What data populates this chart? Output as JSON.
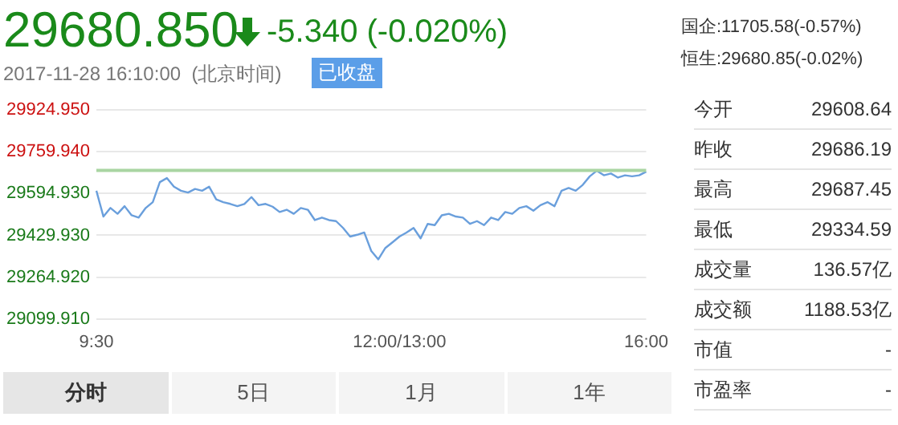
{
  "chart_data": [
    {
      "type": "other",
      "title": "29680.850",
      "subtitle": "2017-11-28 16:10:00  (北京时间)",
      "annotations": [
        "-5.340 (-0.020%)",
        "已收盘"
      ]
    },
    {
      "type": "line",
      "categories": [
        "9:30",
        null,
        null,
        null,
        null,
        null,
        null,
        null,
        null,
        null,
        null,
        null,
        null,
        null,
        null,
        null,
        null,
        null,
        null,
        null,
        null,
        null,
        null,
        null,
        null,
        null,
        null,
        null,
        null,
        null,
        null,
        null,
        null,
        null,
        null,
        null,
        null,
        null,
        null,
        null,
        null,
        null,
        null,
        "12:00/13:00",
        null,
        null,
        null,
        null,
        null,
        null,
        null,
        null,
        null,
        null,
        null,
        null,
        null,
        null,
        null,
        null,
        null,
        null,
        null,
        null,
        null,
        null,
        null,
        null,
        null,
        null,
        null,
        null,
        null,
        null,
        null,
        null,
        null,
        null,
        "16:00"
      ],
      "series": [
        {
          "color": "#6a9fdc",
          "values": [
            29606,
            29504,
            29538,
            29515,
            29545,
            29509,
            29500,
            29538,
            29561,
            29640,
            29656,
            29622,
            29606,
            29599,
            29613,
            29606,
            29622,
            29572,
            29561,
            29554,
            29545,
            29554,
            29581,
            29549,
            29554,
            29543,
            29522,
            29531,
            29515,
            29538,
            29531,
            29490,
            29500,
            29490,
            29486,
            29459,
            29425,
            29432,
            29441,
            29368,
            29335,
            29380,
            29402,
            29425,
            29441,
            29459,
            29418,
            29475,
            29470,
            29509,
            29515,
            29504,
            29500,
            29475,
            29486,
            29470,
            29500,
            29490,
            29522,
            29515,
            29538,
            29545,
            29527,
            29549,
            29561,
            29545,
            29606,
            29617,
            29606,
            29629,
            29663,
            29685,
            29667,
            29674,
            29658,
            29667,
            29663,
            29667,
            29681
          ]
        }
      ],
      "ylim": [
        29099.91,
        29924.95
      ],
      "yticks": [
        {
          "value": 29099.91,
          "label": "29099.910"
        },
        {
          "value": 29264.92,
          "label": "29264.920"
        },
        {
          "value": 29429.93,
          "label": "29429.930"
        },
        {
          "value": 29594.93,
          "label": "29594.930"
        },
        {
          "value": 29759.94,
          "label": "29759.940"
        },
        {
          "value": 29924.95,
          "label": "29924.950"
        }
      ],
      "ref_lines": [
        {
          "axis": "y",
          "value": 29686.19,
          "color": "#a9d5a2"
        }
      ],
      "grid": "y",
      "marker": "none",
      "legend": false
    },
    {
      "type": "other",
      "annotations": [
        "国企:11705.58(-0.57%)",
        "恒生:29680.85(-0.02%)",
        "今开",
        "29608.64",
        "昨收",
        "29686.19",
        "最高",
        "29687.45",
        "最低",
        "29334.59",
        "成交量",
        "136.57亿",
        "成交额",
        "1188.53亿",
        "市值",
        "-",
        "市盈率",
        "-"
      ]
    },
    {
      "type": "other",
      "annotations": [
        "分时",
        "5日",
        "1月",
        "1年"
      ]
    }
  ]
}
